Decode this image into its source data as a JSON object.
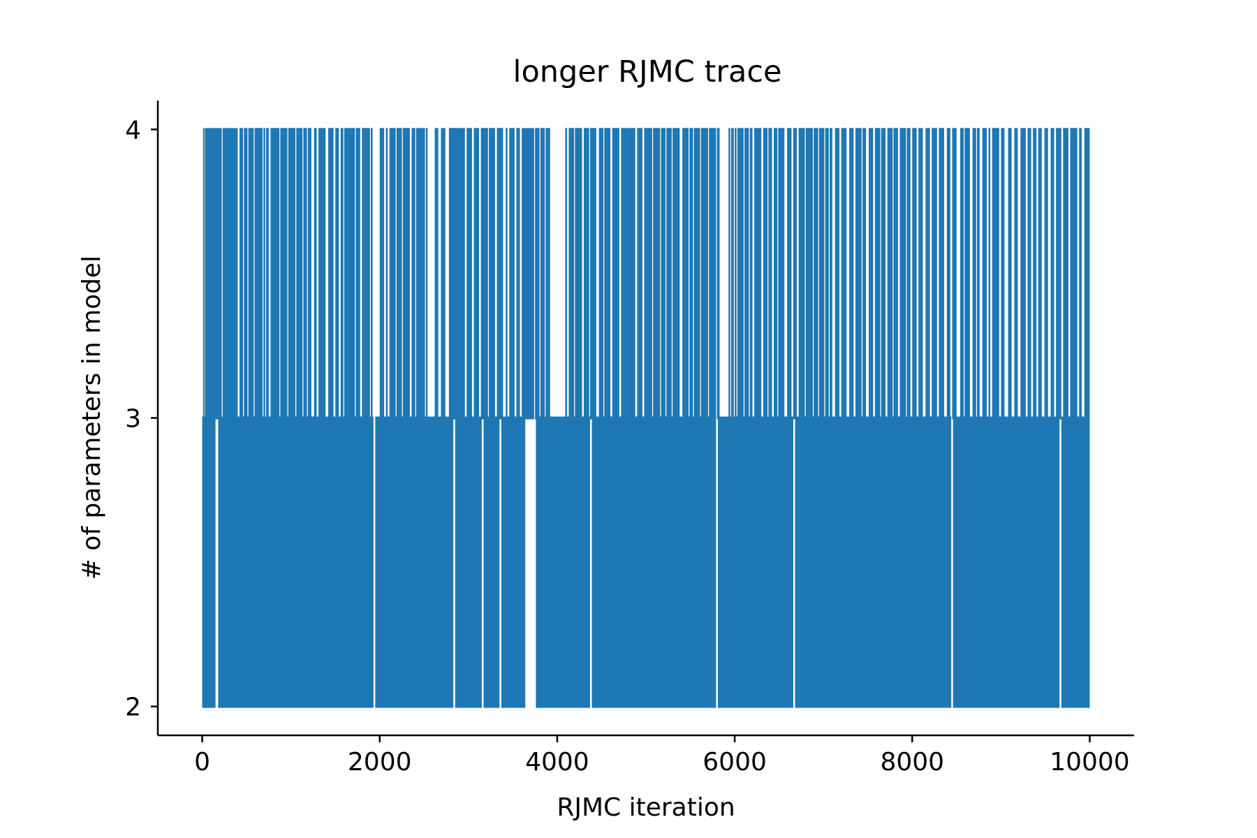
{
  "chart_data": {
    "type": "line",
    "title": "longer RJMC trace",
    "xlabel": "RJMC iteration",
    "ylabel": "# of parameters in model",
    "xlim": [
      -500,
      10500
    ],
    "ylim": [
      1.9,
      4.1
    ],
    "xticks": [
      0,
      2000,
      4000,
      6000,
      8000,
      10000
    ],
    "xtick_labels": [
      "0",
      "2000",
      "4000",
      "6000",
      "8000",
      "10000"
    ],
    "yticks": [
      2,
      3,
      4
    ],
    "ytick_labels": [
      "2",
      "3",
      "4"
    ],
    "grid": false,
    "series": [
      {
        "color": "#1f77b4",
        "x_range": [
          0,
          10000
        ],
        "levels": [
          2,
          3,
          4
        ],
        "description_note": "",
        "segments_3_to_4": [
          [
            10,
            25
          ],
          [
            30,
            220
          ],
          [
            230,
            400
          ],
          [
            420,
            460
          ],
          [
            470,
            510
          ],
          [
            520,
            580
          ],
          [
            590,
            680
          ],
          [
            690,
            710
          ],
          [
            720,
            750
          ],
          [
            770,
            870
          ],
          [
            880,
            960
          ],
          [
            970,
            1050
          ],
          [
            1060,
            1130
          ],
          [
            1140,
            1180
          ],
          [
            1190,
            1230
          ],
          [
            1260,
            1290
          ],
          [
            1310,
            1390
          ],
          [
            1420,
            1480
          ],
          [
            1500,
            1540
          ],
          [
            1560,
            1590
          ],
          [
            1600,
            1720
          ],
          [
            1730,
            1780
          ],
          [
            1800,
            1890
          ],
          [
            1900,
            1920
          ],
          [
            2000,
            2050
          ],
          [
            2070,
            2090
          ],
          [
            2110,
            2180
          ],
          [
            2190,
            2250
          ],
          [
            2260,
            2340
          ],
          [
            2360,
            2400
          ],
          [
            2410,
            2510
          ],
          [
            2520,
            2540
          ],
          [
            2620,
            2660
          ],
          [
            2690,
            2740
          ],
          [
            2780,
            2880
          ],
          [
            2880,
            2960
          ],
          [
            2980,
            3040
          ],
          [
            3060,
            3120
          ],
          [
            3140,
            3220
          ],
          [
            3230,
            3300
          ],
          [
            3320,
            3390
          ],
          [
            3420,
            3440
          ],
          [
            3460,
            3520
          ],
          [
            3540,
            3580
          ],
          [
            3600,
            3740
          ],
          [
            3750,
            3800
          ],
          [
            3810,
            3860
          ],
          [
            3870,
            3920
          ],
          [
            4090,
            4110
          ],
          [
            4130,
            4190
          ],
          [
            4200,
            4280
          ],
          [
            4300,
            4360
          ],
          [
            4370,
            4440
          ],
          [
            4470,
            4520
          ],
          [
            4530,
            4600
          ],
          [
            4620,
            4700
          ],
          [
            4720,
            4790
          ],
          [
            4790,
            4880
          ],
          [
            4900,
            4960
          ],
          [
            4980,
            5070
          ],
          [
            5080,
            5160
          ],
          [
            5170,
            5220
          ],
          [
            5230,
            5290
          ],
          [
            5300,
            5380
          ],
          [
            5410,
            5480
          ],
          [
            5490,
            5530
          ],
          [
            5540,
            5610
          ],
          [
            5620,
            5700
          ],
          [
            5710,
            5790
          ],
          [
            5800,
            5830
          ],
          [
            5930,
            5950
          ],
          [
            5960,
            5990
          ],
          [
            6000,
            6020
          ],
          [
            6030,
            6100
          ],
          [
            6110,
            6160
          ],
          [
            6170,
            6200
          ],
          [
            6220,
            6300
          ],
          [
            6320,
            6370
          ],
          [
            6380,
            6420
          ],
          [
            6440,
            6480
          ],
          [
            6490,
            6560
          ],
          [
            6590,
            6640
          ],
          [
            6660,
            6700
          ],
          [
            6720,
            6790
          ],
          [
            6800,
            6880
          ],
          [
            6890,
            6940
          ],
          [
            6950,
            7010
          ],
          [
            7020,
            7060
          ],
          [
            7070,
            7100
          ],
          [
            7130,
            7180
          ],
          [
            7200,
            7260
          ],
          [
            7290,
            7340
          ],
          [
            7360,
            7430
          ],
          [
            7440,
            7480
          ],
          [
            7510,
            7560
          ],
          [
            7580,
            7640
          ],
          [
            7650,
            7700
          ],
          [
            7720,
            7780
          ],
          [
            7790,
            7840
          ],
          [
            7860,
            7930
          ],
          [
            7940,
            7980
          ],
          [
            8000,
            8050
          ],
          [
            8070,
            8120
          ],
          [
            8150,
            8200
          ],
          [
            8220,
            8280
          ],
          [
            8300,
            8360
          ],
          [
            8390,
            8430
          ],
          [
            8450,
            8500
          ],
          [
            8540,
            8580
          ],
          [
            8590,
            8650
          ],
          [
            8680,
            8720
          ],
          [
            8730,
            8760
          ],
          [
            8790,
            8840
          ],
          [
            8860,
            8880
          ],
          [
            8900,
            8980
          ],
          [
            9000,
            9040
          ],
          [
            9080,
            9120
          ],
          [
            9150,
            9190
          ],
          [
            9220,
            9280
          ],
          [
            9300,
            9340
          ],
          [
            9360,
            9400
          ],
          [
            9420,
            9460
          ],
          [
            9490,
            9530
          ],
          [
            9560,
            9600
          ],
          [
            9620,
            9680
          ],
          [
            9700,
            9760
          ],
          [
            9780,
            9860
          ],
          [
            9880,
            9910
          ],
          [
            9940,
            10000
          ]
        ],
        "segments_2_to_3": [
          [
            0,
            150
          ],
          [
            180,
            1930
          ],
          [
            1950,
            2830
          ],
          [
            2850,
            3150
          ],
          [
            3170,
            3350
          ],
          [
            3370,
            3640
          ],
          [
            3760,
            4370
          ],
          [
            4390,
            5790
          ],
          [
            5810,
            6660
          ],
          [
            6680,
            8440
          ],
          [
            8460,
            9660
          ],
          [
            9680,
            10000
          ]
        ]
      }
    ]
  }
}
